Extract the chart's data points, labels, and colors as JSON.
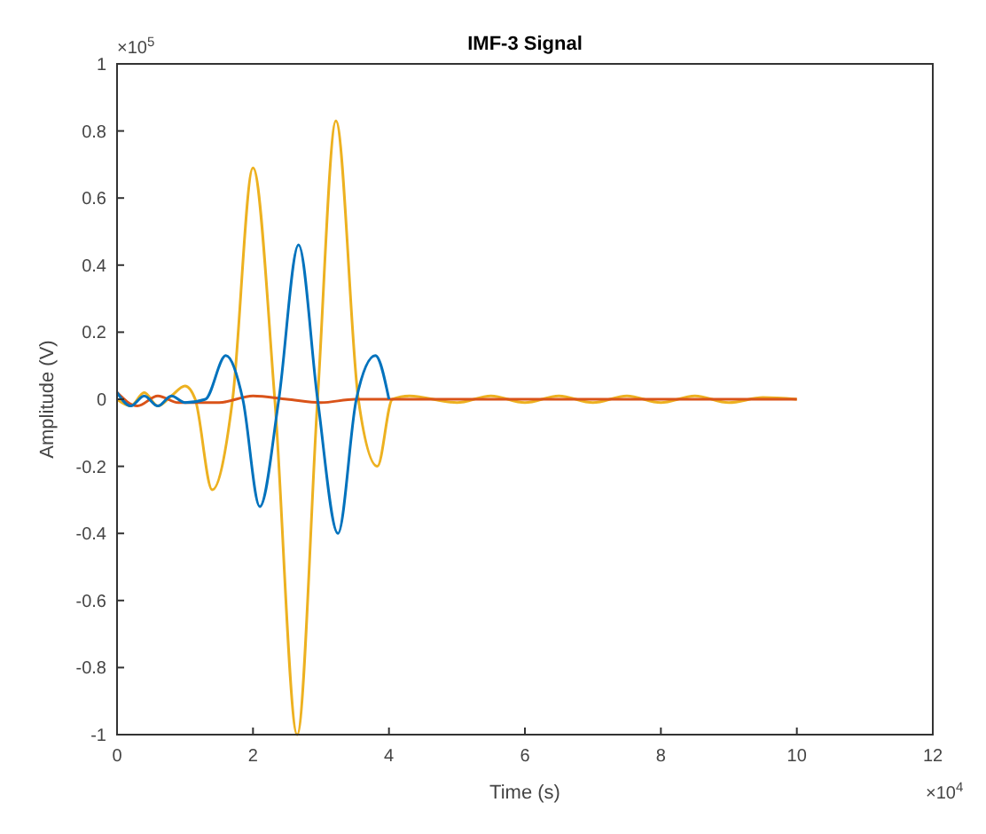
{
  "chart_data": {
    "type": "line",
    "title": "IMF-3 Signal",
    "xlabel": "Time (s)",
    "ylabel": "Amplitude (V)",
    "annotations": [
      "×10$^{5}$",
      "×10$^{4}$"
    ],
    "xlim": [
      0,
      12
    ],
    "xticks": [
      0,
      2,
      4,
      6,
      8,
      10,
      12
    ],
    "ylim": [
      -1,
      1
    ],
    "yticks": [
      -1,
      -0.8,
      -0.6,
      -0.4,
      -0.2,
      0,
      0.2,
      0.4,
      0.6,
      0.8,
      1
    ],
    "grid": false,
    "series": [
      {
        "color": "#edb120",
        "x": [
          0,
          0.2,
          0.4,
          0.6,
          0.8,
          1.0,
          1.15,
          1.4,
          1.7,
          2.0,
          2.32,
          2.65,
          2.95,
          3.22,
          3.55,
          3.83,
          4.05,
          4.3,
          5,
          5.5,
          6,
          6.5,
          7,
          7.5,
          8,
          8.5,
          9,
          9.5,
          10
        ],
        "values": [
          0,
          -0.02,
          0.02,
          -0.02,
          0.01,
          0.04,
          0,
          -0.27,
          0,
          0.69,
          0,
          -1.0,
          0,
          0.83,
          0,
          -0.2,
          0,
          0.01,
          -0.01,
          0.01,
          -0.01,
          0.01,
          -0.01,
          0.01,
          -0.01,
          0.01,
          -0.01,
          0.005,
          0
        ]
      },
      {
        "color": "#d95319",
        "x": [
          0,
          0.3,
          0.6,
          0.9,
          1.2,
          1.5,
          2,
          2.5,
          3,
          3.5,
          4,
          5,
          6,
          7,
          8,
          9,
          10
        ],
        "values": [
          0.02,
          -0.02,
          0.01,
          -0.01,
          -0.01,
          -0.01,
          0.01,
          0,
          -0.01,
          0,
          0,
          0,
          0,
          0,
          0,
          0,
          0
        ]
      },
      {
        "color": "#0072bd",
        "x": [
          0,
          0.2,
          0.4,
          0.6,
          0.8,
          1.0,
          1.3,
          1.6,
          1.85,
          2.1,
          2.38,
          2.67,
          2.95,
          3.25,
          3.52,
          3.8,
          4.0
        ],
        "values": [
          0.02,
          -0.02,
          0.01,
          -0.02,
          0.01,
          -0.01,
          0,
          0.13,
          0,
          -0.32,
          0,
          0.46,
          0,
          -0.4,
          0,
          0.13,
          0
        ]
      }
    ]
  }
}
